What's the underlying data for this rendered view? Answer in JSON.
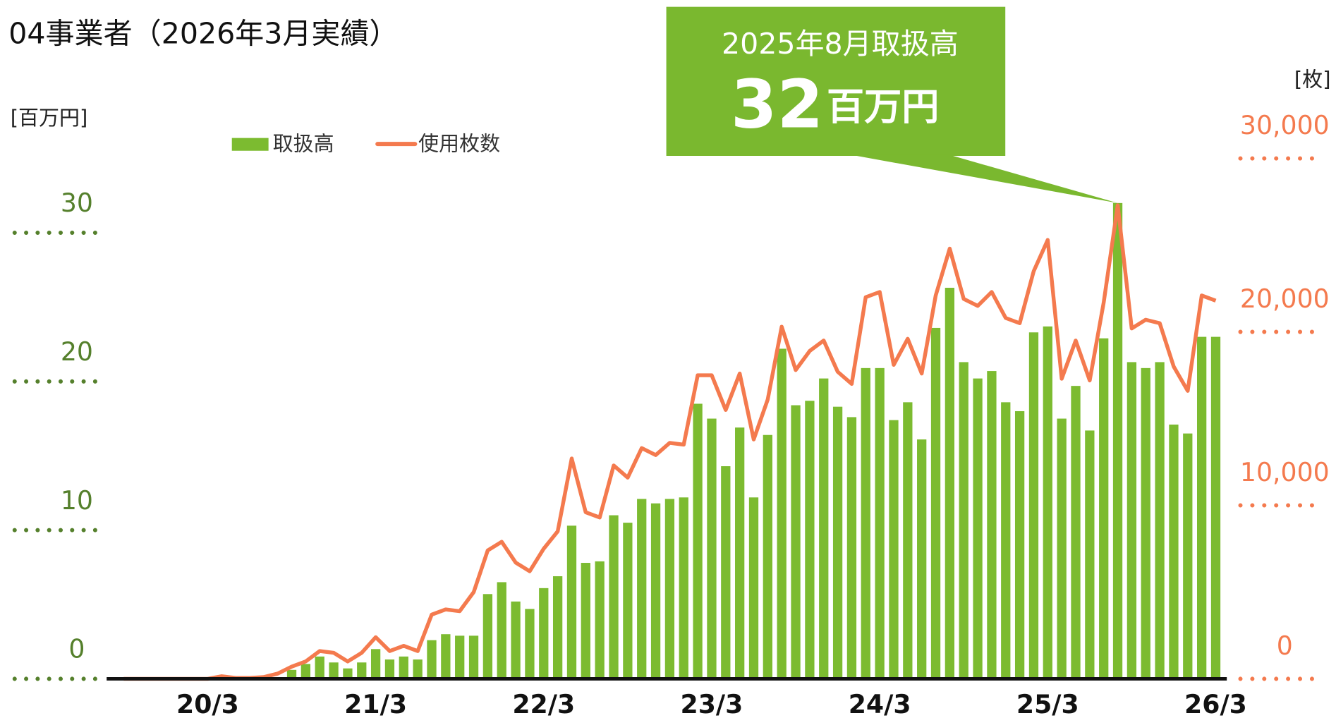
{
  "chart_data": {
    "type": "bar",
    "title": "04事業者（2026年3月実績）",
    "y_label": "[百万円]",
    "y2_label": "[枚]",
    "annotation": {
      "title": "2025年8月取扱高",
      "value": 32,
      "unit": "百万円"
    },
    "categories": [
      null,
      null,
      null,
      null,
      null,
      null,
      "20/3",
      null,
      null,
      null,
      null,
      null,
      null,
      null,
      null,
      null,
      null,
      null,
      "21/3",
      null,
      null,
      null,
      null,
      null,
      null,
      null,
      null,
      null,
      null,
      null,
      "22/3",
      null,
      null,
      null,
      null,
      null,
      null,
      null,
      null,
      null,
      null,
      null,
      "23/3",
      null,
      null,
      null,
      null,
      null,
      null,
      null,
      null,
      null,
      null,
      null,
      "24/3",
      null,
      null,
      null,
      null,
      null,
      null,
      null,
      null,
      null,
      null,
      null,
      "25/3",
      null,
      null,
      null,
      null,
      null,
      null,
      null,
      null,
      null,
      null,
      null,
      "26/3"
    ],
    "series": [
      {
        "name": "取扱高",
        "type": "bar",
        "color": "#7cbb30",
        "values": [
          0,
          0,
          0,
          0,
          0,
          0,
          0,
          0,
          0,
          0,
          0,
          0,
          0.6,
          1.0,
          1.5,
          1.1,
          0.7,
          1.1,
          2.0,
          1.3,
          1.5,
          1.3,
          2.6,
          3.0,
          2.9,
          2.9,
          5.7,
          6.5,
          5.2,
          4.7,
          6.1,
          6.9,
          10.3,
          7.8,
          7.9,
          11.0,
          10.5,
          12.1,
          11.8,
          12.1,
          12.2,
          18.5,
          17.5,
          14.3,
          16.9,
          12.2,
          16.4,
          22.2,
          18.4,
          18.7,
          20.2,
          18.3,
          17.6,
          20.9,
          20.9,
          17.4,
          18.6,
          16.1,
          23.6,
          26.3,
          21.3,
          20.2,
          20.7,
          18.6,
          18.0,
          23.3,
          23.7,
          17.5,
          19.7,
          16.7,
          22.9,
          32,
          21.3,
          20.9,
          21.3,
          17.1,
          16.5,
          23.0,
          23.0
        ]
      },
      {
        "name": "使用枚数",
        "type": "line",
        "color": "#f47a4e",
        "axis": "y2",
        "values": [
          0,
          0,
          0,
          0,
          0,
          0,
          0,
          150,
          50,
          50,
          100,
          300,
          700,
          1000,
          1600,
          1500,
          1000,
          1500,
          2400,
          1600,
          1900,
          1600,
          3700,
          4000,
          3900,
          5000,
          7400,
          7900,
          6700,
          6200,
          7500,
          8500,
          12700,
          9600,
          9300,
          12300,
          11600,
          13300,
          12900,
          13600,
          13500,
          17500,
          17500,
          15500,
          17600,
          13800,
          16100,
          20300,
          17800,
          18900,
          19500,
          17700,
          17000,
          22000,
          22300,
          18100,
          19600,
          17600,
          22100,
          24800,
          21900,
          21500,
          22300,
          20800,
          20500,
          23500,
          25300,
          17300,
          19500,
          17200,
          21700,
          27300,
          20200,
          20700,
          20500,
          18000,
          16600,
          22100,
          21800
        ]
      }
    ],
    "ylim": [
      0,
      35
    ],
    "yticks": [
      0,
      10,
      20,
      30
    ],
    "y2lim": [
      0,
      30000
    ],
    "y2ticks": [
      0,
      {
        "value": 10000,
        "label": "10,000"
      },
      {
        "value": 20000,
        "label": "20,000"
      },
      {
        "value": 30000,
        "label": "30,000"
      }
    ],
    "ytick_color": "#55802c",
    "y2tick_color": "#f47a4e"
  }
}
